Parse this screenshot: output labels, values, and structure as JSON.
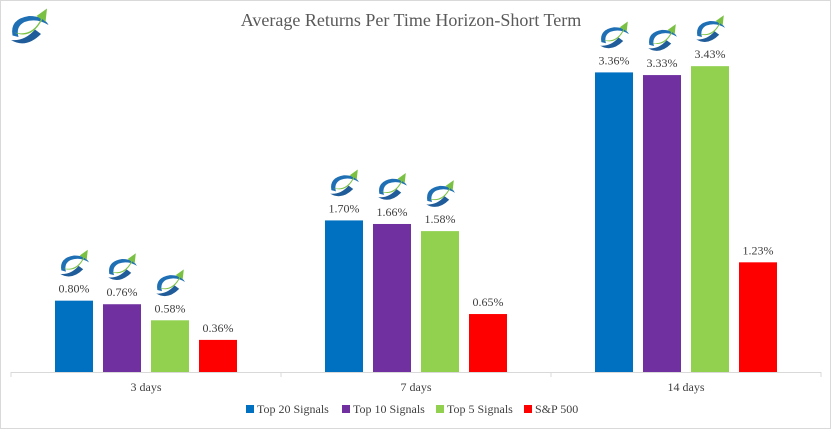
{
  "chart_data": {
    "type": "bar",
    "title": "Average Returns Per Time Horizon-Short Term",
    "categories": [
      "3 days",
      "7 days",
      "14 days"
    ],
    "series": [
      {
        "name": "Top 20 Signals",
        "color": "#0070C0",
        "values": [
          0.8,
          1.7,
          3.36
        ],
        "labels": [
          "0.80%",
          "1.70%",
          "3.36%"
        ]
      },
      {
        "name": "Top 10 Signals",
        "color": "#7030A0",
        "values": [
          0.76,
          1.66,
          3.33
        ],
        "labels": [
          "0.76%",
          "1.66%",
          "3.33%"
        ]
      },
      {
        "name": "Top 5 Signals",
        "color": "#92D050",
        "values": [
          0.58,
          1.58,
          3.43
        ],
        "labels": [
          "0.58%",
          "1.58%",
          "3.43%"
        ]
      },
      {
        "name": "S&P 500",
        "color": "#FF0000",
        "values": [
          0.36,
          0.65,
          1.23
        ],
        "labels": [
          "0.36%",
          "0.65%",
          "1.23%"
        ]
      }
    ],
    "icon_series": [
      "Top 20 Signals",
      "Top 10 Signals",
      "Top 5 Signals"
    ],
    "ylim": [
      0,
      3.6
    ],
    "grid": false,
    "legend_position": "bottom",
    "logo_icon": "swoosh-arrow-logo-icon"
  }
}
